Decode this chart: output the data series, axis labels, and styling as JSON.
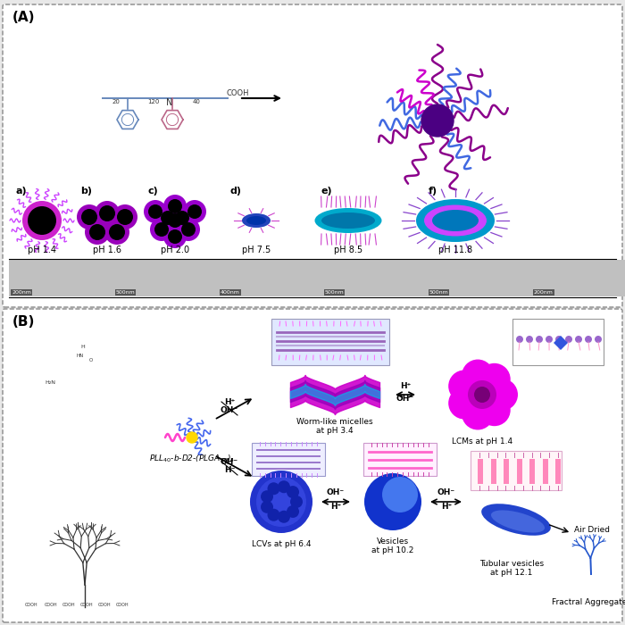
{
  "figure_width": 7.0,
  "figure_height": 7.0,
  "dpi": 100,
  "background_color": "#e8e8e8",
  "panel_A_label": "(A)",
  "panel_B_label": "(B)",
  "pH_labels": [
    "pH 1.4",
    "pH 1.6",
    "pH 2.0",
    "pH 7.5",
    "pH 8.5",
    "pH 11.8"
  ],
  "sub_labels": [
    "a)",
    "b)",
    "c)",
    "d)",
    "e)",
    "f)"
  ],
  "worm_label": "Worm-like micelles\nat pH 3.4",
  "lcm_label": "LCMs at pH 1.4",
  "lcv_label": "LCVs at pH 6.4",
  "vesicle_label": "Vesicles\nat pH 10.2",
  "tubular_label": "Tubular vesicles\nat pH 12.1",
  "fractal_label": "Fractral Aggregates",
  "air_dried_label": "Air Dried",
  "nm_labels": [
    "200nm",
    "500nm",
    "400nm",
    "500nm",
    "500nm",
    "200nm"
  ],
  "purple_color": "#8B008B",
  "blue_color": "#4169E1",
  "magenta_color": "#CC44CC",
  "dark_purple": "#4B0082",
  "deep_blue": "#1122AA",
  "lcm_magenta": "#CC00CC"
}
